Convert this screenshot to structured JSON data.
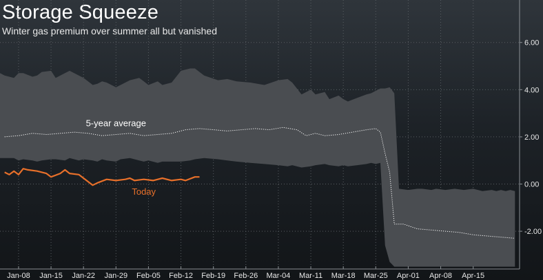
{
  "chart_data": {
    "type": "area",
    "title": "Storage Squeeze",
    "subtitle": "Winter gas premium over summer all but vanished",
    "xlabel": "",
    "ylabel": "",
    "ylim": [
      -3.6,
      7.8
    ],
    "yticks": [
      6.0,
      4.0,
      2.0,
      0.0,
      -2.0
    ],
    "ytick_labels": [
      "6.00",
      "4.00",
      "2.00",
      "0.00",
      "-2.00"
    ],
    "y_axis_position": "right",
    "xticks": [
      3,
      10,
      17,
      24,
      31,
      38,
      45,
      52,
      59,
      66,
      73,
      80,
      87,
      94,
      101
    ],
    "xtick_labels": [
      "Jan-08",
      "Jan-15",
      "Jan-22",
      "Jan-29",
      "Feb-05",
      "Feb-12",
      "Feb-19",
      "Feb-26",
      "Mar-04",
      "Mar-11",
      "Mar-18",
      "Mar-25",
      "Apr-01",
      "Apr-08",
      "Apr-15"
    ],
    "x_unit": "days since Jan-05",
    "xlim": [
      -1,
      111
    ],
    "grid": true,
    "annotations": [
      {
        "text": "5-year average",
        "series": "5-year average",
        "x": 24,
        "y": 2.45
      },
      {
        "text": "Today",
        "series": "Today",
        "x": 30,
        "y": -0.45
      }
    ],
    "colors": {
      "band": "#4a4d51",
      "average": "#ffffff",
      "today": "#e8702a",
      "grid": "#5a5f64",
      "tick_label": "#e8e8e8"
    },
    "band": {
      "x": [
        -1,
        0,
        2,
        3,
        4,
        6,
        7,
        8,
        10,
        11,
        13,
        14,
        16,
        17,
        19,
        20,
        21,
        22,
        24,
        25,
        27,
        29,
        30,
        31,
        33,
        34,
        36,
        38,
        40,
        41,
        43,
        46,
        48,
        50,
        53,
        56,
        59,
        61,
        62,
        64,
        66,
        67,
        69,
        70,
        72,
        73,
        74,
        76,
        78,
        79,
        80,
        81,
        82,
        83,
        84,
        85,
        87,
        89,
        90,
        92,
        93,
        95,
        97,
        99,
        101,
        103,
        105,
        106,
        107,
        108,
        109,
        110
      ],
      "upper": [
        4.7,
        4.6,
        4.5,
        4.7,
        4.7,
        4.55,
        4.6,
        4.75,
        4.8,
        4.5,
        4.7,
        4.8,
        4.6,
        4.5,
        4.2,
        4.25,
        4.35,
        4.3,
        4.1,
        4.2,
        4.4,
        4.5,
        4.35,
        4.2,
        4.35,
        4.2,
        4.3,
        4.8,
        4.9,
        4.9,
        4.6,
        4.4,
        4.45,
        4.35,
        4.3,
        4.2,
        4.4,
        4.45,
        4.3,
        3.8,
        4.0,
        3.8,
        3.9,
        3.6,
        3.75,
        3.6,
        3.5,
        3.65,
        3.8,
        3.85,
        3.95,
        4.05,
        4.05,
        4.1,
        3.85,
        -0.2,
        -0.25,
        -0.2,
        -0.2,
        -0.25,
        -0.2,
        -0.25,
        -0.2,
        -0.25,
        -0.2,
        -0.3,
        -0.25,
        -0.3,
        -0.25,
        -0.3,
        -0.25,
        -0.3
      ],
      "lower": [
        1.1,
        1.1,
        1.1,
        1.0,
        1.05,
        1.0,
        0.95,
        1.0,
        1.05,
        1.05,
        1.0,
        1.1,
        1.0,
        1.05,
        1.0,
        0.95,
        1.05,
        1.0,
        0.95,
        1.05,
        1.1,
        1.0,
        0.95,
        1.0,
        0.9,
        0.95,
        0.95,
        0.95,
        1.0,
        1.05,
        1.1,
        1.05,
        1.0,
        0.95,
        0.9,
        0.85,
        0.8,
        0.75,
        0.8,
        0.7,
        0.75,
        0.8,
        0.85,
        0.8,
        0.75,
        0.8,
        0.75,
        0.8,
        0.85,
        0.9,
        0.85,
        0.9,
        -2.6,
        -3.3,
        -3.5,
        -3.5,
        -3.5,
        -3.5,
        -3.5,
        -3.5,
        -3.5,
        -3.5,
        -3.5,
        -3.5,
        -3.5,
        -3.5,
        -3.5,
        -3.5,
        -3.5,
        -3.5,
        -3.5,
        -3.5
      ]
    },
    "series": [
      {
        "name": "5-year average",
        "style": "dotted",
        "x": [
          0,
          3,
          6,
          9,
          12,
          15,
          18,
          21,
          24,
          27,
          30,
          33,
          36,
          39,
          42,
          45,
          48,
          51,
          54,
          57,
          60,
          63,
          65,
          67,
          69,
          72,
          75,
          78,
          80,
          81,
          82,
          83,
          84,
          86,
          89,
          92,
          95,
          98,
          101,
          104,
          107,
          110
        ],
        "values": [
          2.0,
          2.05,
          2.15,
          2.1,
          2.15,
          2.2,
          2.15,
          2.05,
          2.1,
          2.15,
          2.05,
          2.1,
          2.15,
          2.3,
          2.35,
          2.3,
          2.25,
          2.3,
          2.35,
          2.3,
          2.4,
          2.3,
          2.05,
          2.15,
          2.05,
          2.1,
          2.2,
          2.3,
          2.35,
          2.2,
          1.3,
          0.5,
          -1.7,
          -1.7,
          -1.9,
          -1.95,
          -2.0,
          -2.05,
          -2.15,
          -2.2,
          -2.25,
          -2.3
        ]
      },
      {
        "name": "Today",
        "style": "solid",
        "x": [
          0,
          1,
          2,
          3,
          4,
          5,
          7,
          9,
          10,
          12,
          13,
          14,
          16,
          18,
          19,
          20,
          22,
          24,
          26,
          27,
          28,
          30,
          32,
          34,
          36,
          38,
          39,
          41,
          42
        ],
        "values": [
          0.5,
          0.4,
          0.55,
          0.4,
          0.65,
          0.6,
          0.55,
          0.45,
          0.3,
          0.45,
          0.6,
          0.45,
          0.4,
          0.1,
          -0.05,
          0.05,
          0.2,
          0.15,
          0.2,
          0.25,
          0.15,
          0.2,
          0.15,
          0.25,
          0.15,
          0.2,
          0.15,
          0.3,
          0.3
        ]
      }
    ]
  }
}
